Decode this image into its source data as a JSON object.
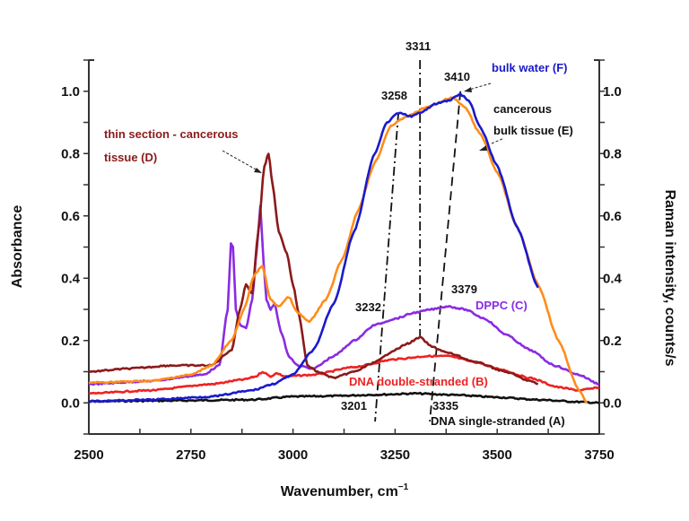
{
  "chart_data": {
    "type": "line",
    "title": "",
    "xlabel": "Wavenumber, cm",
    "xlabel_superscript": "−1",
    "ylabel": "Absorbance",
    "ylabel_right": "Raman intensity, counts/s",
    "xlim": [
      2500,
      3750
    ],
    "ylim": [
      -0.1,
      1.1
    ],
    "ylim_right": [
      -0.1,
      1.1
    ],
    "grid": false,
    "x_ticks": [
      2500,
      2750,
      3000,
      3250,
      3500,
      3750
    ],
    "x_tick_labels": [
      "2500",
      "2750",
      "3000",
      "3250",
      "3500",
      "3750"
    ],
    "y_ticks": [
      0.0,
      0.2,
      0.4,
      0.6,
      0.8,
      1.0
    ],
    "y_tick_labels": [
      "0.0",
      "0.2",
      "0.4",
      "0.6",
      "0.8",
      "1.0"
    ],
    "y_right_tick_labels": [
      "0.0",
      "0.2",
      "0.4",
      "0.6",
      "0.8",
      "1.0"
    ],
    "series": [
      {
        "name": "DNA single-stranded (A)",
        "color": "#111111",
        "x": [
          2500,
          2700,
          2900,
          3000,
          3100,
          3200,
          3300,
          3400,
          3500,
          3600,
          3700,
          3750
        ],
        "y": [
          0.005,
          0.007,
          0.01,
          0.02,
          0.022,
          0.026,
          0.03,
          0.025,
          0.018,
          0.01,
          0.003,
          0.0
        ]
      },
      {
        "name": "DNA double-stranded (B)",
        "color": "#ee2222",
        "x": [
          2500,
          2650,
          2800,
          2880,
          2910,
          2925,
          2945,
          2960,
          2980,
          3050,
          3150,
          3250,
          3330,
          3379,
          3450,
          3500,
          3580,
          3650,
          3700,
          3730,
          3750
        ],
        "y": [
          0.03,
          0.04,
          0.06,
          0.075,
          0.085,
          0.1,
          0.085,
          0.095,
          0.085,
          0.09,
          0.115,
          0.14,
          0.15,
          0.15,
          0.13,
          0.11,
          0.08,
          0.05,
          0.04,
          0.045,
          0.05
        ]
      },
      {
        "name": "DPPC (C)",
        "color": "#8a2be2",
        "x": [
          2500,
          2650,
          2780,
          2820,
          2840,
          2848,
          2853,
          2860,
          2870,
          2885,
          2900,
          2912,
          2920,
          2928,
          2935,
          2945,
          2955,
          2970,
          2990,
          3010,
          3050,
          3100,
          3150,
          3200,
          3250,
          3300,
          3340,
          3379,
          3420,
          3470,
          3520,
          3580,
          3640,
          3700,
          3750
        ],
        "y": [
          0.06,
          0.07,
          0.09,
          0.12,
          0.3,
          0.51,
          0.5,
          0.3,
          0.25,
          0.24,
          0.33,
          0.5,
          0.63,
          0.45,
          0.33,
          0.3,
          0.32,
          0.23,
          0.15,
          0.12,
          0.11,
          0.15,
          0.2,
          0.25,
          0.27,
          0.29,
          0.3,
          0.31,
          0.3,
          0.27,
          0.22,
          0.17,
          0.12,
          0.09,
          0.06
        ]
      },
      {
        "name": "thin section - cancerous tissue (D)",
        "color": "#8b1a1a",
        "x": [
          2500,
          2600,
          2700,
          2800,
          2850,
          2870,
          2885,
          2900,
          2915,
          2930,
          2940,
          2950,
          2965,
          2985,
          3000,
          3015,
          3035,
          3060,
          3100,
          3150,
          3200,
          3250,
          3280,
          3311,
          3340,
          3380,
          3450,
          3520,
          3580,
          3600
        ],
        "y": [
          0.1,
          0.11,
          0.12,
          0.12,
          0.17,
          0.3,
          0.38,
          0.35,
          0.55,
          0.76,
          0.8,
          0.7,
          0.55,
          0.48,
          0.38,
          0.28,
          0.12,
          0.1,
          0.08,
          0.1,
          0.13,
          0.17,
          0.19,
          0.21,
          0.18,
          0.16,
          0.13,
          0.1,
          0.07,
          0.06
        ]
      },
      {
        "name": "cancerous bulk tissue (E)",
        "color": "#ff8c1a",
        "x": [
          2500,
          2650,
          2750,
          2800,
          2850,
          2880,
          2905,
          2925,
          2945,
          2965,
          2990,
          3010,
          3040,
          3080,
          3120,
          3160,
          3200,
          3240,
          3280,
          3330,
          3390,
          3420,
          3460,
          3500,
          3550,
          3600,
          3650,
          3700,
          3720
        ],
        "y": [
          0.065,
          0.07,
          0.09,
          0.12,
          0.2,
          0.3,
          0.41,
          0.44,
          0.33,
          0.31,
          0.34,
          0.29,
          0.26,
          0.33,
          0.46,
          0.62,
          0.77,
          0.89,
          0.92,
          0.95,
          0.98,
          0.95,
          0.86,
          0.74,
          0.56,
          0.38,
          0.2,
          0.04,
          0.0
        ]
      },
      {
        "name": "bulk water (F)",
        "color": "#1a1acc",
        "x": [
          2500,
          2650,
          2800,
          2900,
          2950,
          3000,
          3050,
          3100,
          3150,
          3200,
          3230,
          3258,
          3290,
          3311,
          3350,
          3380,
          3410,
          3430,
          3460,
          3500,
          3550,
          3600
        ],
        "y": [
          0.005,
          0.01,
          0.02,
          0.04,
          0.06,
          0.09,
          0.17,
          0.32,
          0.55,
          0.8,
          0.9,
          0.93,
          0.92,
          0.93,
          0.96,
          0.97,
          0.99,
          0.97,
          0.88,
          0.76,
          0.56,
          0.37
        ]
      }
    ],
    "annotations": [
      {
        "text": "thin section - cancerous",
        "color": "#8b1a1a"
      },
      {
        "text": "tissue (D)",
        "color": "#8b1a1a"
      },
      {
        "text": "bulk water (F)",
        "color": "#1a1acc"
      },
      {
        "text": "cancerous",
        "color": "#111111"
      },
      {
        "text": "bulk tissue (E)",
        "color": "#111111"
      },
      {
        "text": "DPPC (C)",
        "color": "#8a2be2"
      },
      {
        "text": "DNA double-stranded (B)",
        "color": "#ee2222"
      },
      {
        "text": "DNA single-stranded (A)",
        "color": "#111111"
      },
      {
        "text": "3311",
        "color": "#111111"
      },
      {
        "text": "3410",
        "color": "#111111"
      },
      {
        "text": "3258",
        "color": "#111111"
      },
      {
        "text": "3232",
        "color": "#111111"
      },
      {
        "text": "3379",
        "color": "#111111"
      },
      {
        "text": "3201",
        "color": "#111111"
      },
      {
        "text": "3335",
        "color": "#111111"
      }
    ],
    "reference_lines": [
      {
        "name": "3311",
        "style": "dash-dot",
        "x_top": 3311,
        "x_bottom": 3311,
        "y_top": 1.1,
        "y_bottom": 0.21
      },
      {
        "name": "3258-3201",
        "style": "dash-dot",
        "x_top": 3258,
        "x_bottom": 3201,
        "y_top": 0.93,
        "y_bottom": -0.06
      },
      {
        "name": "3410-3335",
        "style": "dashed",
        "x_top": 3410,
        "x_bottom": 3335,
        "y_top": 1.0,
        "y_bottom": -0.06
      }
    ]
  }
}
